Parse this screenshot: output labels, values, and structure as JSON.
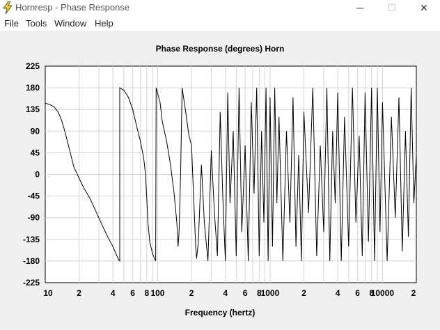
{
  "window": {
    "title": "Hornresp - Phase Response",
    "controls": {
      "minimize": "─",
      "maximize": "☐",
      "close": "✕"
    }
  },
  "menu": [
    "File",
    "Tools",
    "Window",
    "Help"
  ],
  "chart_data": {
    "type": "line",
    "title": "Phase Response (degrees)    Horn",
    "xlabel": "Frequency (hertz)",
    "ylabel": "",
    "x_scale": "log",
    "xlim": [
      10,
      20000
    ],
    "ylim": [
      -225,
      225
    ],
    "grid": true,
    "y_ticks": [
      225,
      180,
      135,
      90,
      45,
      0,
      -45,
      -90,
      -135,
      -180,
      -225
    ],
    "y_tick_labels": [
      "225",
      "180",
      "135",
      "90",
      "45",
      "0",
      "-45",
      "-90",
      "-135",
      "-180",
      "-225"
    ],
    "x_ticks": [
      10,
      20,
      40,
      60,
      80,
      100,
      200,
      400,
      600,
      800,
      1000,
      2000,
      4000,
      6000,
      8000,
      10000,
      20000
    ],
    "x_tick_labels": [
      "10",
      "2",
      "4",
      "6",
      "8",
      "100",
      "2",
      "4",
      "6",
      "8",
      "1000",
      "2",
      "4",
      "6",
      "8",
      "10000",
      "2"
    ],
    "series": [
      {
        "values": [
          [
            10,
            148
          ],
          [
            11,
            145
          ],
          [
            12,
            140
          ],
          [
            13,
            130
          ],
          [
            14,
            112
          ],
          [
            15,
            88
          ],
          [
            16,
            62
          ],
          [
            17,
            38
          ],
          [
            18,
            15
          ],
          [
            20,
            -8
          ],
          [
            22,
            -28
          ],
          [
            25,
            -50
          ],
          [
            28,
            -75
          ],
          [
            32,
            -105
          ],
          [
            36,
            -130
          ],
          [
            40,
            -150
          ],
          [
            45,
            -178
          ],
          [
            46,
            -180
          ],
          [
            46,
            180
          ],
          [
            50,
            175
          ],
          [
            55,
            160
          ],
          [
            60,
            135
          ],
          [
            65,
            100
          ],
          [
            70,
            70
          ],
          [
            75,
            35
          ],
          [
            78,
            0
          ],
          [
            80,
            -50
          ],
          [
            82,
            -100
          ],
          [
            85,
            -140
          ],
          [
            90,
            -165
          ],
          [
            96,
            -180
          ],
          [
            97,
            180
          ],
          [
            105,
            150
          ],
          [
            110,
            110
          ],
          [
            120,
            70
          ],
          [
            130,
            20
          ],
          [
            140,
            -40
          ],
          [
            148,
            -100
          ],
          [
            152,
            -150
          ],
          [
            155,
            -120
          ],
          [
            160,
            0
          ],
          [
            165,
            180
          ],
          [
            175,
            140
          ],
          [
            190,
            80
          ],
          [
            200,
            60
          ],
          [
            210,
            -60
          ],
          [
            218,
            -150
          ],
          [
            222,
            -175
          ],
          [
            230,
            -140
          ],
          [
            245,
            20
          ],
          [
            260,
            -100
          ],
          [
            280,
            -180
          ],
          [
            300,
            50
          ],
          [
            320,
            -80
          ],
          [
            340,
            -170
          ],
          [
            360,
            130
          ],
          [
            380,
            -50
          ],
          [
            400,
            -180
          ],
          [
            420,
            170
          ],
          [
            440,
            -60
          ],
          [
            470,
            90
          ],
          [
            500,
            -170
          ],
          [
            530,
            180
          ],
          [
            560,
            -120
          ],
          [
            600,
            60
          ],
          [
            640,
            -180
          ],
          [
            680,
            150
          ],
          [
            720,
            -40
          ],
          [
            760,
            180
          ],
          [
            800,
            -170
          ],
          [
            840,
            90
          ],
          [
            880,
            -100
          ],
          [
            920,
            180
          ],
          [
            960,
            -180
          ],
          [
            1000,
            160
          ],
          [
            1050,
            -150
          ],
          [
            1100,
            180
          ],
          [
            1150,
            -60
          ],
          [
            1200,
            120
          ],
          [
            1300,
            -180
          ],
          [
            1400,
            90
          ],
          [
            1500,
            -100
          ],
          [
            1600,
            160
          ],
          [
            1700,
            -150
          ],
          [
            1800,
            40
          ],
          [
            1900,
            -180
          ],
          [
            2000,
            130
          ],
          [
            2200,
            -80
          ],
          [
            2400,
            180
          ],
          [
            2600,
            -170
          ],
          [
            2800,
            60
          ],
          [
            3000,
            -120
          ],
          [
            3200,
            180
          ],
          [
            3400,
            -180
          ],
          [
            3600,
            90
          ],
          [
            3800,
            -60
          ],
          [
            4000,
            170
          ],
          [
            4300,
            -180
          ],
          [
            4600,
            120
          ],
          [
            5000,
            -150
          ],
          [
            5400,
            180
          ],
          [
            5800,
            -100
          ],
          [
            6200,
            80
          ],
          [
            6600,
            -170
          ],
          [
            7000,
            170
          ],
          [
            7500,
            -140
          ],
          [
            8000,
            180
          ],
          [
            8500,
            -180
          ],
          [
            9000,
            180
          ],
          [
            9500,
            -120
          ],
          [
            10000,
            150
          ],
          [
            11000,
            -180
          ],
          [
            12000,
            120
          ],
          [
            13000,
            -90
          ],
          [
            14000,
            160
          ],
          [
            15000,
            -160
          ],
          [
            16000,
            90
          ],
          [
            17000,
            -130
          ],
          [
            18000,
            180
          ],
          [
            19000,
            -60
          ],
          [
            20000,
            40
          ]
        ]
      }
    ]
  }
}
